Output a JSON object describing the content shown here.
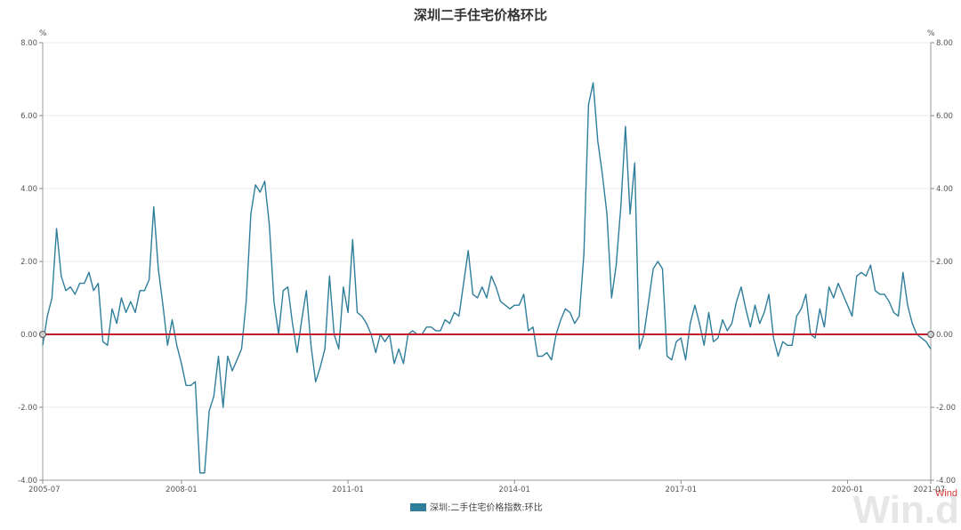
{
  "chart_data": {
    "type": "line",
    "title": "深圳二手住宅价格环比",
    "y_unit_left": "%",
    "y_unit_right": "%",
    "ylim": [
      -4,
      8
    ],
    "y_ticks": [
      8,
      6,
      4,
      2,
      0,
      -2,
      -4
    ],
    "y_tick_labels": [
      "8.00",
      "6.00",
      "4.00",
      "2.00",
      "0.00",
      "-2.00",
      "-4.00"
    ],
    "x_range": [
      "2005-07",
      "2021-07"
    ],
    "x_ticks": [
      "2005-07",
      "2008-01",
      "2011-01",
      "2014-01",
      "2017-01",
      "2020-01",
      "2021-07"
    ],
    "grid": "horizontal",
    "legend_position": "bottom-center",
    "series": [
      {
        "name": "深圳:二手住宅价格指数:环比",
        "color": "#2e7d9a",
        "x": [
          "2005-07",
          "2005-08",
          "2005-09",
          "2005-10",
          "2005-11",
          "2005-12",
          "2006-01",
          "2006-02",
          "2006-03",
          "2006-04",
          "2006-05",
          "2006-06",
          "2006-07",
          "2006-08",
          "2006-09",
          "2006-10",
          "2006-11",
          "2006-12",
          "2007-01",
          "2007-02",
          "2007-03",
          "2007-04",
          "2007-05",
          "2007-06",
          "2007-07",
          "2007-08",
          "2007-09",
          "2007-10",
          "2007-11",
          "2007-12",
          "2008-01",
          "2008-02",
          "2008-03",
          "2008-04",
          "2008-05",
          "2008-06",
          "2008-07",
          "2008-08",
          "2008-09",
          "2008-10",
          "2008-11",
          "2008-12",
          "2009-01",
          "2009-02",
          "2009-03",
          "2009-04",
          "2009-05",
          "2009-06",
          "2009-07",
          "2009-08",
          "2009-09",
          "2009-10",
          "2009-11",
          "2009-12",
          "2010-01",
          "2010-02",
          "2010-03",
          "2010-04",
          "2010-05",
          "2010-06",
          "2010-07",
          "2010-08",
          "2010-09",
          "2010-10",
          "2010-11",
          "2010-12",
          "2011-01",
          "2011-02",
          "2011-03",
          "2011-04",
          "2011-05",
          "2011-06",
          "2011-07",
          "2011-08",
          "2011-09",
          "2011-10",
          "2011-11",
          "2011-12",
          "2012-01",
          "2012-02",
          "2012-03",
          "2012-04",
          "2012-05",
          "2012-06",
          "2012-07",
          "2012-08",
          "2012-09",
          "2012-10",
          "2012-11",
          "2012-12",
          "2013-01",
          "2013-02",
          "2013-03",
          "2013-04",
          "2013-05",
          "2013-06",
          "2013-07",
          "2013-08",
          "2013-09",
          "2013-10",
          "2013-11",
          "2013-12",
          "2014-01",
          "2014-02",
          "2014-03",
          "2014-04",
          "2014-05",
          "2014-06",
          "2014-07",
          "2014-08",
          "2014-09",
          "2014-10",
          "2014-11",
          "2014-12",
          "2015-01",
          "2015-02",
          "2015-03",
          "2015-04",
          "2015-05",
          "2015-06",
          "2015-07",
          "2015-08",
          "2015-09",
          "2015-10",
          "2015-11",
          "2015-12",
          "2016-01",
          "2016-02",
          "2016-03",
          "2016-04",
          "2016-05",
          "2016-06",
          "2016-07",
          "2016-08",
          "2016-09",
          "2016-10",
          "2016-11",
          "2016-12",
          "2017-01",
          "2017-02",
          "2017-03",
          "2017-04",
          "2017-05",
          "2017-06",
          "2017-07",
          "2017-08",
          "2017-09",
          "2017-10",
          "2017-11",
          "2017-12",
          "2018-01",
          "2018-02",
          "2018-03",
          "2018-04",
          "2018-05",
          "2018-06",
          "2018-07",
          "2018-08",
          "2018-09",
          "2018-10",
          "2018-11",
          "2018-12",
          "2019-01",
          "2019-02",
          "2019-03",
          "2019-04",
          "2019-05",
          "2019-06",
          "2019-07",
          "2019-08",
          "2019-09",
          "2019-10",
          "2019-11",
          "2019-12",
          "2020-01",
          "2020-02",
          "2020-03",
          "2020-04",
          "2020-05",
          "2020-06",
          "2020-07",
          "2020-08",
          "2020-09",
          "2020-10",
          "2020-11",
          "2020-12",
          "2021-01",
          "2021-02",
          "2021-03",
          "2021-04",
          "2021-05",
          "2021-06",
          "2021-07"
        ],
        "values": [
          -0.3,
          0.5,
          1.0,
          2.9,
          1.6,
          1.2,
          1.3,
          1.1,
          1.4,
          1.4,
          1.7,
          1.2,
          1.4,
          -0.2,
          -0.3,
          0.7,
          0.3,
          1.0,
          0.6,
          0.9,
          0.6,
          1.2,
          1.2,
          1.5,
          3.5,
          1.8,
          0.8,
          -0.3,
          0.4,
          -0.3,
          -0.8,
          -1.4,
          -1.4,
          -1.3,
          -3.8,
          -3.8,
          -2.1,
          -1.7,
          -0.6,
          -2.0,
          -0.6,
          -1.0,
          -0.7,
          -0.4,
          0.9,
          3.3,
          4.1,
          3.9,
          4.2,
          3.0,
          0.9,
          0.0,
          1.2,
          1.3,
          0.3,
          -0.5,
          0.4,
          1.2,
          -0.3,
          -1.3,
          -0.9,
          -0.4,
          1.6,
          0.0,
          -0.4,
          1.3,
          0.6,
          2.6,
          0.6,
          0.5,
          0.3,
          0.0,
          -0.5,
          0.0,
          -0.2,
          0.0,
          -0.8,
          -0.4,
          -0.8,
          0.0,
          0.1,
          0.0,
          0.0,
          0.2,
          0.2,
          0.1,
          0.1,
          0.4,
          0.3,
          0.6,
          0.5,
          1.4,
          2.3,
          1.1,
          1.0,
          1.3,
          1.0,
          1.6,
          1.3,
          0.9,
          0.8,
          0.7,
          0.8,
          0.8,
          1.1,
          0.1,
          0.2,
          -0.6,
          -0.6,
          -0.5,
          -0.7,
          0.0,
          0.4,
          0.7,
          0.6,
          0.3,
          0.5,
          2.2,
          6.3,
          6.9,
          5.3,
          4.4,
          3.3,
          1.0,
          1.9,
          3.5,
          5.7,
          3.3,
          4.7,
          -0.4,
          0.0,
          0.9,
          1.8,
          2.0,
          1.8,
          -0.6,
          -0.7,
          -0.2,
          -0.1,
          -0.7,
          0.3,
          0.8,
          0.3,
          -0.3,
          0.6,
          -0.2,
          -0.1,
          0.4,
          0.1,
          0.3,
          0.9,
          1.3,
          0.7,
          0.2,
          0.8,
          0.3,
          0.6,
          1.1,
          -0.1,
          -0.6,
          -0.2,
          -0.3,
          -0.3,
          0.5,
          0.7,
          1.1,
          0.0,
          -0.1,
          0.7,
          0.2,
          1.3,
          1.0,
          1.4,
          1.1,
          0.8,
          0.5,
          1.6,
          1.7,
          1.6,
          1.9,
          1.2,
          1.1,
          1.1,
          0.9,
          0.6,
          0.5,
          1.7,
          0.8,
          0.3,
          0.0,
          -0.1,
          -0.2,
          -0.4
        ]
      }
    ],
    "reference_line": {
      "value": 0,
      "color": "#c41e2a"
    },
    "watermark_small": "Wind",
    "watermark_large": "Win.d"
  }
}
